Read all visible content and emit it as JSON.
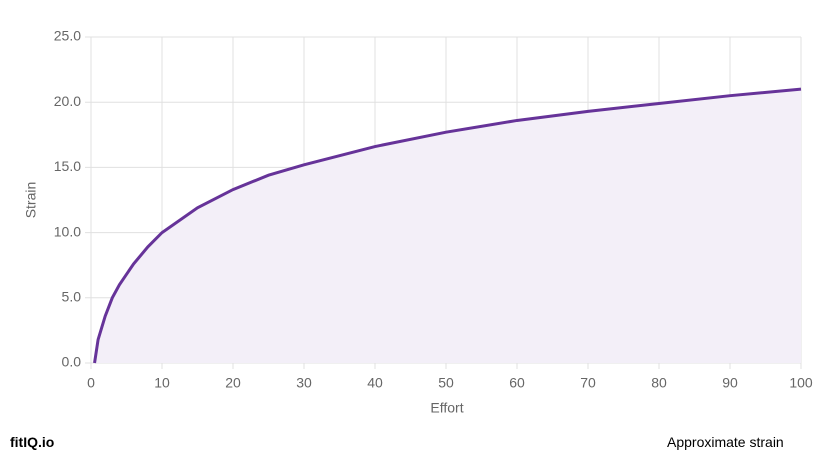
{
  "chart_data": {
    "type": "area-line",
    "x_label": "Effort",
    "y_label": "Strain",
    "x": [
      0.5,
      1,
      2,
      3,
      4,
      5,
      6,
      8,
      10,
      15,
      20,
      25,
      30,
      40,
      50,
      60,
      70,
      80,
      90,
      100
    ],
    "series": [
      {
        "name": "Strain",
        "color": "#663399",
        "fill": "#f3eff8",
        "values": [
          0,
          1.8,
          3.6,
          5.0,
          6.0,
          6.8,
          7.6,
          8.9,
          10.0,
          11.9,
          13.3,
          14.4,
          15.2,
          16.6,
          17.7,
          18.6,
          19.3,
          19.9,
          20.5,
          21.0
        ]
      }
    ],
    "xlim": [
      0,
      100
    ],
    "xticks": [
      0,
      10,
      20,
      30,
      40,
      50,
      60,
      70,
      80,
      90,
      100
    ],
    "ylim": [
      0,
      25
    ],
    "yticks": [
      {
        "value": 0,
        "label": "0.0"
      },
      {
        "value": 5,
        "label": "5.0"
      },
      {
        "value": 10,
        "label": "10.0"
      },
      {
        "value": 15,
        "label": "15.0"
      },
      {
        "value": 20,
        "label": "20.0"
      },
      {
        "value": 25,
        "label": "25.0"
      }
    ],
    "grid": true
  },
  "footer": {
    "left": "fitIQ.io",
    "right": "Approximate strain"
  }
}
